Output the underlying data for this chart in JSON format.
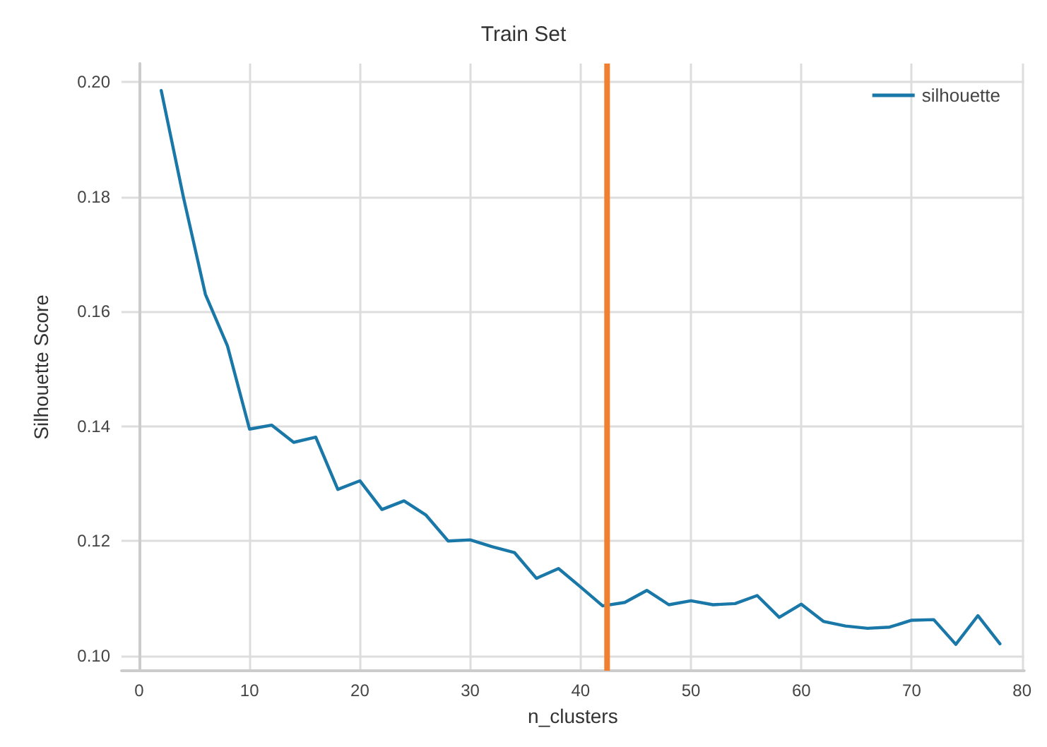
{
  "chart_data": {
    "type": "line",
    "title": "Train Set",
    "xlabel": "n_clusters",
    "ylabel": "Silhouette Score",
    "x": [
      2,
      4,
      6,
      8,
      10,
      12,
      14,
      16,
      18,
      20,
      22,
      24,
      26,
      28,
      30,
      32,
      34,
      36,
      38,
      40,
      42,
      44,
      46,
      48,
      50,
      52,
      54,
      56,
      58,
      60,
      62,
      64,
      66,
      68,
      70,
      72,
      74,
      76,
      78
    ],
    "series": [
      {
        "name": "silhouette",
        "color": "#1a78a8",
        "values": [
          0.1985,
          0.18,
          0.163,
          0.154,
          0.1395,
          0.1402,
          0.1372,
          0.1381,
          0.129,
          0.1305,
          0.1255,
          0.127,
          0.1245,
          0.12,
          0.1202,
          0.119,
          0.118,
          0.1135,
          0.1152,
          0.112,
          0.1087,
          0.1093,
          0.1114,
          0.1089,
          0.1096,
          0.1089,
          0.1091,
          0.1105,
          0.1067,
          0.109,
          0.106,
          0.1052,
          0.1048,
          0.105,
          0.1062,
          0.1063,
          0.102,
          0.107,
          0.1021
        ]
      }
    ],
    "xlim": [
      -1.6,
      80.2
    ],
    "xticks": [
      0,
      10,
      20,
      30,
      40,
      50,
      60,
      70,
      80
    ],
    "ylim": [
      0.0974,
      0.2032
    ],
    "yticks": [
      {
        "value": 0.1,
        "label": "0.10"
      },
      {
        "value": 0.12,
        "label": "0.12"
      },
      {
        "value": 0.14,
        "label": "0.14"
      },
      {
        "value": 0.16,
        "label": "0.16"
      },
      {
        "value": 0.18,
        "label": "0.18"
      },
      {
        "value": 0.2,
        "label": "0.20"
      }
    ],
    "ref_lines": [
      {
        "axis": "x",
        "value": 42.4,
        "color": "#f07f2f"
      }
    ],
    "grid": true,
    "legend": "top right",
    "marker": "none",
    "line_style": "solid"
  }
}
